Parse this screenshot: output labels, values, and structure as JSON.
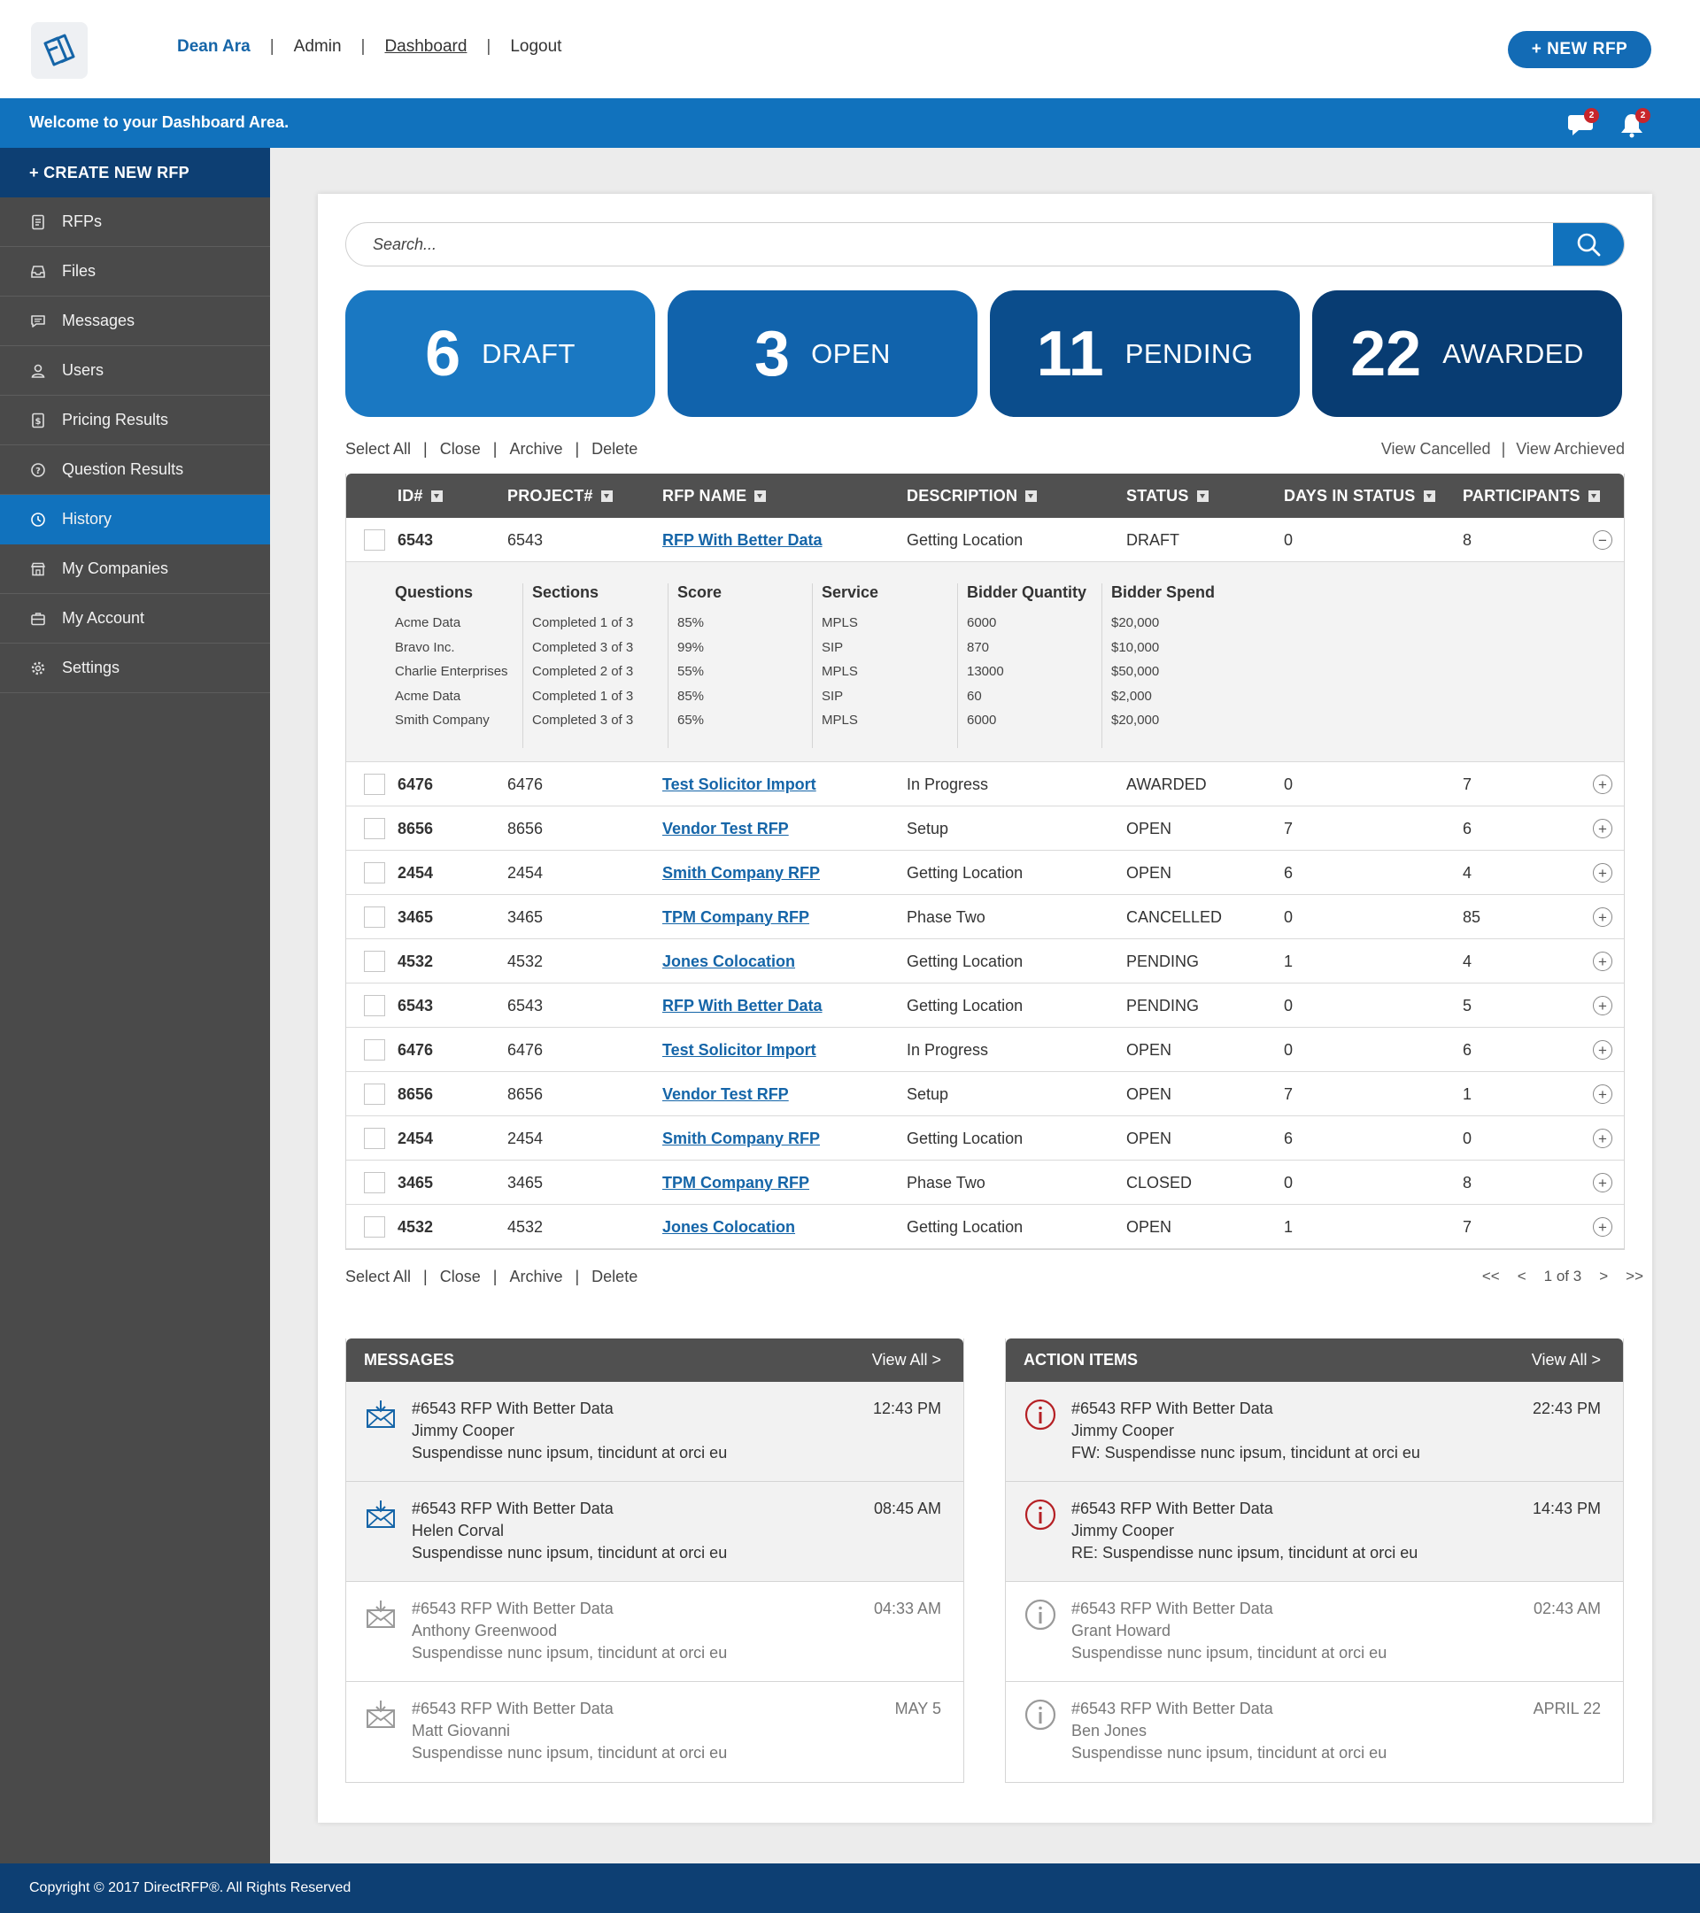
{
  "header": {
    "user_name": "Dean Ara",
    "nav_links": [
      "Admin",
      "Dashboard",
      "Logout"
    ],
    "new_rfp_label": "+ NEW RFP"
  },
  "welcome": {
    "text": "Welcome to your Dashboard Area.",
    "messages_badge": "2",
    "notifications_badge": "2"
  },
  "sidebar": {
    "create_label": "+ CREATE NEW RFP",
    "items": [
      {
        "label": "RFPs",
        "icon": "document-icon"
      },
      {
        "label": "Files",
        "icon": "inbox-tray-icon"
      },
      {
        "label": "Messages",
        "icon": "chat-icon"
      },
      {
        "label": "Users",
        "icon": "user-icon"
      },
      {
        "label": "Pricing Results",
        "icon": "dollar-document-icon"
      },
      {
        "label": "Question Results",
        "icon": "question-circle-icon"
      },
      {
        "label": "History",
        "icon": "clock-icon",
        "active": true
      },
      {
        "label": "My Companies",
        "icon": "store-icon"
      },
      {
        "label": "My Account",
        "icon": "briefcase-icon"
      },
      {
        "label": "Settings",
        "icon": "gear-icon"
      }
    ]
  },
  "search": {
    "placeholder": "Search..."
  },
  "stats": [
    {
      "count": "6",
      "label": "DRAFT",
      "color": "#1a78c2"
    },
    {
      "count": "3",
      "label": "OPEN",
      "color": "#1163ac"
    },
    {
      "count": "11",
      "label": "PENDING",
      "color": "#0b4d8c"
    },
    {
      "count": "22",
      "label": "AWARDED",
      "color": "#083c72"
    }
  ],
  "bulk_actions": [
    "Select All",
    "Close",
    "Archive",
    "Delete"
  ],
  "view_links": [
    "View Cancelled",
    "View Archieved"
  ],
  "table": {
    "columns": [
      "ID#",
      "PROJECT#",
      "RFP NAME",
      "DESCRIPTION",
      "STATUS",
      "DAYS IN STATUS",
      "PARTICIPANTS"
    ],
    "expanded_row": {
      "id": "6543",
      "project": "6543",
      "name": "RFP With Better Data",
      "description": "Getting Location",
      "status": "DRAFT",
      "days": "0",
      "participants": "8",
      "toggle": "−"
    },
    "detail": {
      "columns": [
        {
          "header": "Questions",
          "values": [
            "Acme Data",
            "Bravo Inc.",
            "Charlie Enterprises",
            "Acme Data",
            "Smith Company"
          ]
        },
        {
          "header": "Sections",
          "values": [
            "Completed 1 of 3",
            "Completed 3 of 3",
            "Completed 2 of 3",
            "Completed 1 of 3",
            "Completed 3 of 3"
          ]
        },
        {
          "header": "Score",
          "values": [
            "85%",
            "99%",
            "55%",
            "85%",
            "65%"
          ]
        },
        {
          "header": "Service",
          "values": [
            "MPLS",
            "SIP",
            "MPLS",
            "SIP",
            "MPLS"
          ]
        },
        {
          "header": "Bidder Quantity",
          "values": [
            "6000",
            "870",
            "13000",
            "60",
            "6000"
          ]
        },
        {
          "header": "Bidder Spend",
          "values": [
            "$20,000",
            "$10,000",
            "$50,000",
            "$2,000",
            "$20,000"
          ]
        }
      ]
    },
    "rows": [
      {
        "id": "6476",
        "project": "6476",
        "name": "Test Solicitor Import",
        "description": "In Progress",
        "status": "AWARDED",
        "days": "0",
        "participants": "7",
        "toggle": "+"
      },
      {
        "id": "8656",
        "project": "8656",
        "name": "Vendor Test RFP",
        "description": "Setup",
        "status": "OPEN",
        "days": "7",
        "participants": "6",
        "toggle": "+"
      },
      {
        "id": "2454",
        "project": "2454",
        "name": "Smith Company RFP",
        "description": "Getting Location",
        "status": "OPEN",
        "days": "6",
        "participants": "4",
        "toggle": "+"
      },
      {
        "id": "3465",
        "project": "3465",
        "name": "TPM Company RFP",
        "description": "Phase Two",
        "status": "CANCELLED",
        "days": "0",
        "participants": "85",
        "toggle": "+"
      },
      {
        "id": "4532",
        "project": "4532",
        "name": "Jones Colocation",
        "description": "Getting Location",
        "status": "PENDING",
        "days": "1",
        "participants": "4",
        "toggle": "+"
      },
      {
        "id": "6543",
        "project": "6543",
        "name": "RFP With Better Data",
        "description": "Getting Location",
        "status": "PENDING",
        "days": "0",
        "participants": "5",
        "toggle": "+"
      },
      {
        "id": "6476",
        "project": "6476",
        "name": "Test Solicitor Import",
        "description": "In Progress",
        "status": "OPEN",
        "days": "0",
        "participants": "6",
        "toggle": "+"
      },
      {
        "id": "8656",
        "project": "8656",
        "name": "Vendor Test RFP",
        "description": "Setup",
        "status": "OPEN",
        "days": "7",
        "participants": "1",
        "toggle": "+"
      },
      {
        "id": "2454",
        "project": "2454",
        "name": "Smith Company RFP",
        "description": "Getting Location",
        "status": "OPEN",
        "days": "6",
        "participants": "0",
        "toggle": "+"
      },
      {
        "id": "3465",
        "project": "3465",
        "name": "TPM Company RFP",
        "description": "Phase Two",
        "status": "CLOSED",
        "days": "0",
        "participants": "8",
        "toggle": "+"
      },
      {
        "id": "4532",
        "project": "4532",
        "name": "Jones Colocation",
        "description": "Getting Location",
        "status": "OPEN",
        "days": "1",
        "participants": "7",
        "toggle": "+"
      }
    ]
  },
  "pagination": {
    "first": "<<",
    "prev": "<",
    "current": "1 of 3",
    "next": ">",
    "last": ">>"
  },
  "messages": {
    "title": "MESSAGES",
    "view_all": "View All >",
    "items": [
      {
        "subject": "#6543 RFP With Better Data",
        "from": "Jimmy Cooper",
        "body": "Suspendisse nunc ipsum, tincidunt at orci eu",
        "time": "12:43 PM",
        "unread": true
      },
      {
        "subject": "#6543 RFP With Better Data",
        "from": "Helen Corval",
        "body": "Suspendisse nunc ipsum, tincidunt at orci eu",
        "time": "08:45 AM",
        "unread": true
      },
      {
        "subject": "#6543 RFP With Better Data",
        "from": "Anthony Greenwood",
        "body": "Suspendisse nunc ipsum, tincidunt at orci eu",
        "time": "04:33 AM",
        "unread": false
      },
      {
        "subject": "#6543 RFP With Better Data",
        "from": "Matt Giovanni",
        "body": "Suspendisse nunc ipsum, tincidunt at orci eu",
        "time": "MAY 5",
        "unread": false
      }
    ]
  },
  "action_items": {
    "title": "ACTION ITEMS",
    "view_all": "View All >",
    "items": [
      {
        "subject": "#6543 RFP With Better Data",
        "from": "Jimmy Cooper",
        "body": "FW: Suspendisse nunc ipsum, tincidunt at orci eu",
        "time": "22:43 PM",
        "unread": true
      },
      {
        "subject": "#6543 RFP With Better Data",
        "from": "Jimmy Cooper",
        "body": "RE: Suspendisse nunc ipsum, tincidunt at orci eu",
        "time": "14:43 PM",
        "unread": true
      },
      {
        "subject": "#6543 RFP With Better Data",
        "from": "Grant Howard",
        "body": "Suspendisse nunc ipsum, tincidunt at orci eu",
        "time": "02:43 AM",
        "unread": false
      },
      {
        "subject": "#6543 RFP With Better Data",
        "from": "Ben Jones",
        "body": "Suspendisse nunc ipsum, tincidunt at orci eu",
        "time": "APRIL 22",
        "unread": false
      }
    ]
  },
  "footer": {
    "copyright": "Copyright © 2017 DirectRFP®. All Rights Reserved"
  },
  "colors": {
    "primary": "#1172bd",
    "dark_navy": "#0d3f73",
    "sidebar": "#4a4a4a",
    "link": "#1565a8",
    "alert_red": "#b52025"
  }
}
